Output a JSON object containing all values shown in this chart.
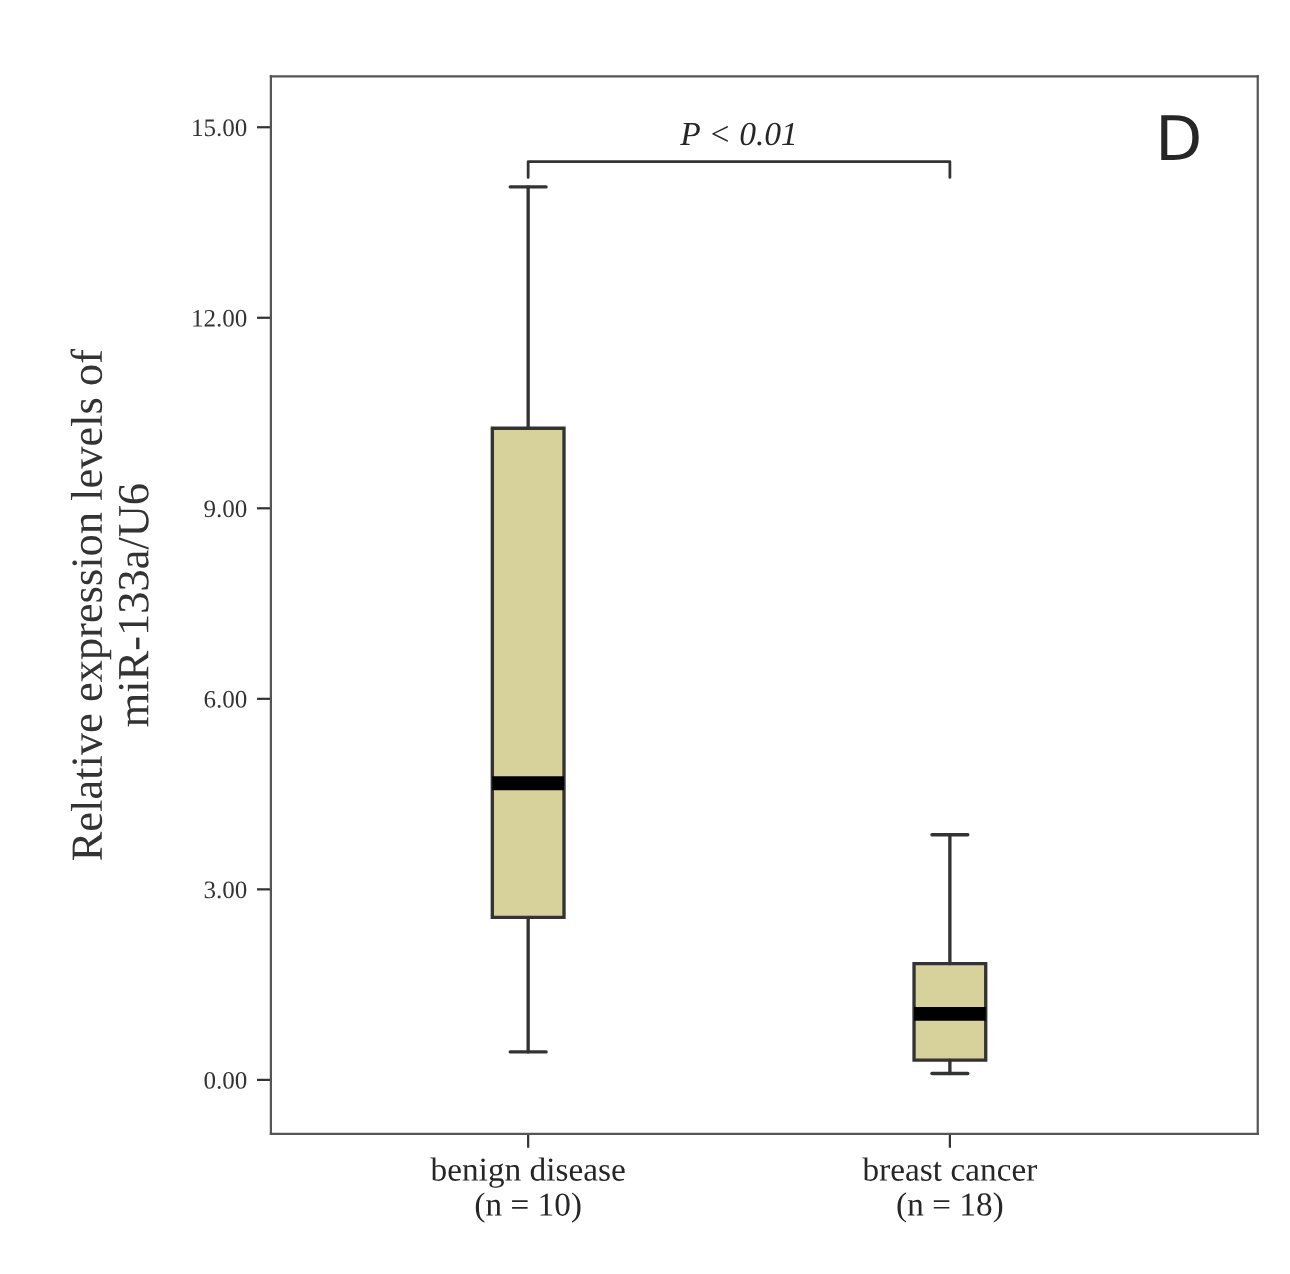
{
  "chart_data": {
    "type": "box",
    "ylabel": "Relative expression levels of\nmiR-133a/U6",
    "categories": [
      "benign disease\n(n = 10)",
      "breast cancer\n(n = 18)"
    ],
    "boxes": [
      {
        "low": 0.44,
        "q1": 2.56,
        "median": 4.67,
        "q3": 10.26,
        "high": 14.06
      },
      {
        "low": 0.1,
        "q1": 0.31,
        "median": 1.04,
        "q3": 1.83,
        "high": 3.86
      }
    ],
    "color": "#d7d29c",
    "ylim": [
      -0.85,
      15.8
    ],
    "yticks": [
      {
        "value": 0,
        "label": "0.00"
      },
      {
        "value": 3,
        "label": "3.00"
      },
      {
        "value": 6,
        "label": "6.00"
      },
      {
        "value": 9,
        "label": "9.00"
      },
      {
        "value": 12,
        "label": "12.00"
      },
      {
        "value": 15,
        "label": "15.00"
      }
    ],
    "annotations": [
      "P < 0.01",
      "D"
    ],
    "grid": false
  }
}
